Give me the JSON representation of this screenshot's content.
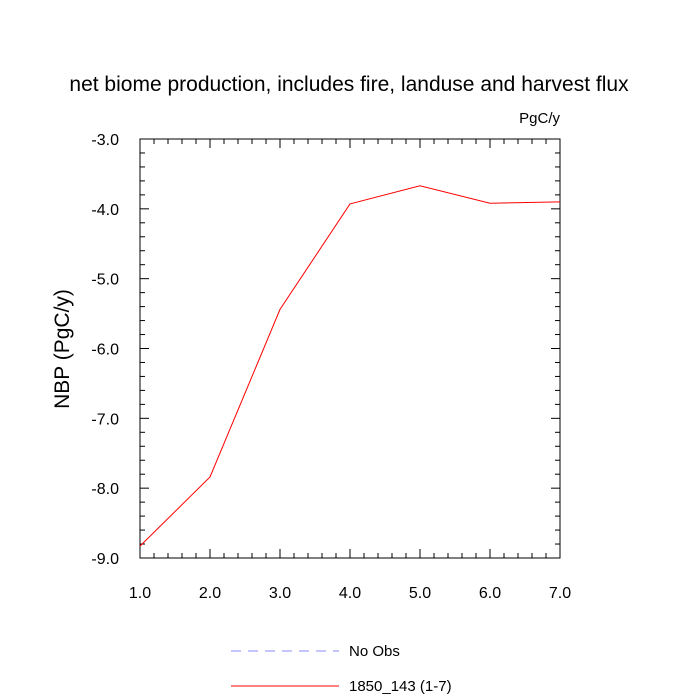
{
  "chart_data": {
    "type": "line",
    "title": "net biome production, includes fire, landuse and harvest flux",
    "units_label": "PgC/y",
    "ylabel": "NBP  (PgC/y)",
    "xlabel": "",
    "xlim": [
      1.0,
      7.0
    ],
    "ylim": [
      -9.0,
      -3.0
    ],
    "x_ticks": [
      "1.0",
      "2.0",
      "3.0",
      "4.0",
      "5.0",
      "6.0",
      "7.0"
    ],
    "y_ticks": [
      "-3.0",
      "-4.0",
      "-5.0",
      "-6.0",
      "-7.0",
      "-8.0",
      "-9.0"
    ],
    "grid": false,
    "legend_position": "bottom-center",
    "series": [
      {
        "name": "1850_143 (1-7)",
        "color": "#ff0000",
        "style": "solid",
        "x": [
          1,
          2,
          3,
          4,
          5,
          6,
          7
        ],
        "y": [
          -8.83,
          -7.84,
          -5.44,
          -3.93,
          -3.67,
          -3.92,
          -3.9
        ]
      }
    ],
    "legend": [
      {
        "label": "No Obs",
        "color": "#8c8cff",
        "style": "dashed"
      },
      {
        "label": "1850_143 (1-7)",
        "color": "#ff0000",
        "style": "solid"
      }
    ]
  }
}
